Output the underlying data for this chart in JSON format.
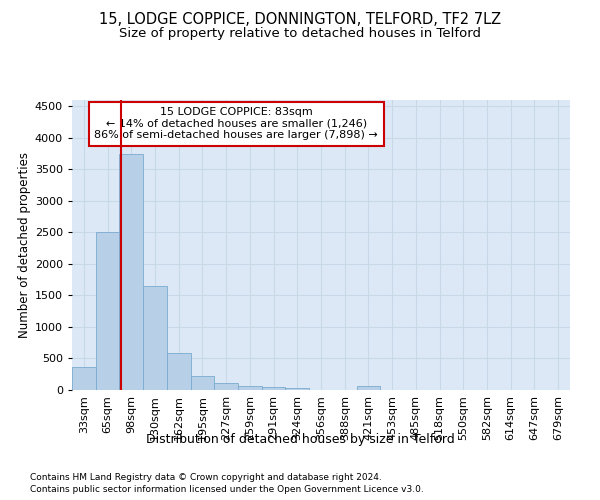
{
  "title1": "15, LODGE COPPICE, DONNINGTON, TELFORD, TF2 7LZ",
  "title2": "Size of property relative to detached houses in Telford",
  "xlabel": "Distribution of detached houses by size in Telford",
  "ylabel": "Number of detached properties",
  "categories": [
    "33sqm",
    "65sqm",
    "98sqm",
    "130sqm",
    "162sqm",
    "195sqm",
    "227sqm",
    "259sqm",
    "291sqm",
    "324sqm",
    "356sqm",
    "388sqm",
    "421sqm",
    "453sqm",
    "485sqm",
    "518sqm",
    "550sqm",
    "582sqm",
    "614sqm",
    "647sqm",
    "679sqm"
  ],
  "values": [
    370,
    2500,
    3750,
    1650,
    590,
    230,
    110,
    60,
    40,
    30,
    0,
    0,
    60,
    0,
    0,
    0,
    0,
    0,
    0,
    0,
    0
  ],
  "bar_color": "#b8cfe8",
  "bar_edge_color": "#7aaad0",
  "vline_color": "#cc0000",
  "annotation_text": "15 LODGE COPPICE: 83sqm\n← 14% of detached houses are smaller (1,246)\n86% of semi-detached houses are larger (7,898) →",
  "annotation_box_color": "#ffffff",
  "annotation_box_edge": "#cc0000",
  "ylim": [
    0,
    4600
  ],
  "yticks": [
    0,
    500,
    1000,
    1500,
    2000,
    2500,
    3000,
    3500,
    4000,
    4500
  ],
  "grid_color": "#c8d8e8",
  "bg_color": "#dce8f5",
  "footer1": "Contains HM Land Registry data © Crown copyright and database right 2024.",
  "footer2": "Contains public sector information licensed under the Open Government Licence v3.0.",
  "title1_fontsize": 10.5,
  "title2_fontsize": 9.5,
  "xlabel_fontsize": 9,
  "ylabel_fontsize": 8.5,
  "tick_fontsize": 8,
  "footer_fontsize": 6.5
}
